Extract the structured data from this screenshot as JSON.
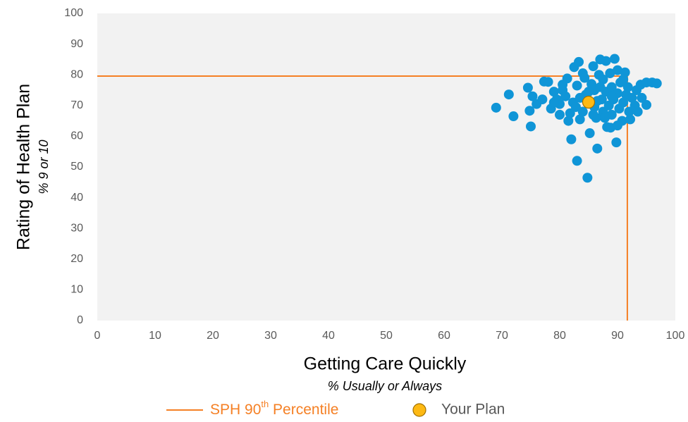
{
  "chart_data": {
    "type": "scatter",
    "x_label": "Getting Care Quickly",
    "x_sublabel": "% Usually or Always",
    "y_label": "Rating of Health Plan",
    "y_sublabel": "% 9 or 10",
    "xlim": [
      0,
      100
    ],
    "xticks": [
      0,
      10,
      20,
      30,
      40,
      50,
      60,
      70,
      80,
      90,
      100
    ],
    "ylim": [
      0,
      100
    ],
    "yticks": [
      0,
      10,
      20,
      30,
      40,
      50,
      60,
      70,
      80,
      90,
      100
    ],
    "series": [
      {
        "color": "#0f95d7",
        "x": [
          69,
          71.2,
          72,
          74.8,
          75,
          74.5,
          75.3,
          76,
          77.3,
          78,
          78.5,
          79,
          79.5,
          80,
          80,
          80.5,
          81,
          81.3,
          81.5,
          81.8,
          82,
          82.3,
          82.5,
          83,
          83,
          83.3,
          83.5,
          84,
          84,
          84.5,
          84.8,
          85.2,
          85.5,
          85.8,
          86,
          86,
          86.3,
          86.5,
          86.8,
          87,
          87.3,
          87.5,
          87.5,
          88,
          88,
          88.2,
          88.5,
          88.7,
          89,
          89,
          89.3,
          89.5,
          89.8,
          90,
          90,
          90.3,
          90.5,
          90.8,
          91,
          91.3,
          91.5,
          91.8,
          92,
          92.2,
          92.5,
          93,
          93.3,
          93.5,
          94,
          94.2,
          95,
          95,
          96,
          96.8,
          83.5,
          85,
          86.5,
          87.8,
          88.8,
          82.8,
          84.3,
          79,
          77,
          80.5,
          85.8,
          89,
          90,
          91,
          87
        ],
        "values": [
          69.3,
          73.6,
          66.5,
          68.3,
          63.2,
          75.8,
          73,
          70.5,
          77.8,
          77.7,
          69,
          74.5,
          72,
          67,
          70.5,
          75,
          73,
          78.8,
          65,
          67.5,
          59,
          71,
          82.5,
          76.5,
          52,
          84.2,
          65.5,
          68,
          80.5,
          73.5,
          46.5,
          61,
          77,
          82.8,
          75,
          69.5,
          66,
          56,
          80,
          85,
          72,
          78.5,
          68,
          84.5,
          74.5,
          63,
          70,
          80.5,
          67,
          76,
          72,
          85.2,
          58,
          81.5,
          74,
          69,
          77.5,
          65,
          71,
          80.8,
          73.5,
          76,
          68,
          65.5,
          72.5,
          70,
          75,
          68,
          76.8,
          72.5,
          77.5,
          70.2,
          77.5,
          77.2,
          72.5,
          74.5,
          71.5,
          66,
          62.8,
          69.5,
          79,
          71,
          72,
          76.8,
          67,
          73,
          63.5,
          78.5,
          76
        ]
      },
      {
        "name": "Your Plan",
        "color": "#fdb913",
        "x": [
          85
        ],
        "values": [
          71.1
        ]
      }
    ],
    "reference_lines": {
      "label": [
        "SPH 90",
        "th",
        " Percentile"
      ],
      "color": "#f58025",
      "x": 91.7,
      "y": 79.6
    }
  }
}
